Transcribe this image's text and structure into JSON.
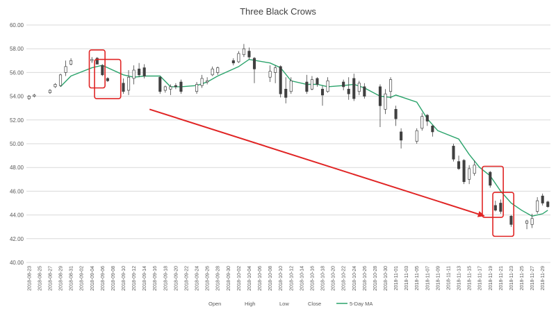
{
  "chart_data": {
    "type": "candlestick",
    "title": "Three Black Crows",
    "xlabel": "",
    "ylabel": "",
    "ylim": [
      40,
      60
    ],
    "y_ticks": [
      "40.00",
      "42.00",
      "44.00",
      "46.00",
      "48.00",
      "50.00",
      "52.00",
      "54.00",
      "56.00",
      "58.00",
      "60.00"
    ],
    "x_tick_labels": [
      "2018-08-23",
      "2018-08-25",
      "2018-08-27",
      "2018-08-29",
      "2018-08-31",
      "2018-09-02",
      "2018-09-04",
      "2018-09-06",
      "2018-09-08",
      "2018-09-10",
      "2018-09-12",
      "2018-09-14",
      "2018-09-16",
      "2018-09-18",
      "2018-09-20",
      "2018-09-22",
      "2018-09-24",
      "2018-09-26",
      "2018-09-28",
      "2018-09-30",
      "2018-10-02",
      "2018-10-04",
      "2018-10-06",
      "2018-10-08",
      "2018-10-10",
      "2018-10-12",
      "2018-10-14",
      "2018-10-16",
      "2018-10-18",
      "2018-10-20",
      "2018-10-22",
      "2018-10-24",
      "2018-10-26",
      "2018-10-28",
      "2018-10-30",
      "2018-11-01",
      "2018-11-03",
      "2018-11-05",
      "2018-11-07",
      "2018-11-09",
      "2018-11-11",
      "2018-11-13",
      "2018-11-15",
      "2018-11-17",
      "2018-11-19",
      "2018-11-21",
      "2018-11-23",
      "2018-11-25",
      "2018-11-27",
      "2018-11-29"
    ],
    "x_range": [
      "2018-08-23",
      "2018-11-30"
    ],
    "grid": "horizontal",
    "legend": {
      "position": "bottom",
      "entries": [
        "Open",
        "High",
        "Low",
        "Close",
        "5-Day MA"
      ]
    },
    "colors": {
      "bull_fill": "#ffffff",
      "bear_fill": "#404040",
      "candle_stroke": "#404040",
      "ma_line": "#2aa36b",
      "annotation": "#e02424"
    },
    "candles": [
      {
        "date": "2018-08-23",
        "open": 53.8,
        "high": 54.1,
        "low": 53.7,
        "close": 54.0
      },
      {
        "date": "2018-08-24",
        "open": 54.0,
        "high": 54.2,
        "low": 53.9,
        "close": 54.1
      },
      {
        "date": "2018-08-27",
        "open": 54.3,
        "high": 54.6,
        "low": 54.2,
        "close": 54.5
      },
      {
        "date": "2018-08-28",
        "open": 54.8,
        "high": 55.1,
        "low": 54.7,
        "close": 55.0
      },
      {
        "date": "2018-08-29",
        "open": 54.9,
        "high": 55.9,
        "low": 54.8,
        "close": 55.8
      },
      {
        "date": "2018-08-30",
        "open": 56.0,
        "high": 57.0,
        "low": 55.7,
        "close": 56.5
      },
      {
        "date": "2018-08-31",
        "open": 56.7,
        "high": 57.2,
        "low": 56.6,
        "close": 57.0
      },
      {
        "date": "2018-09-04",
        "open": 57.0,
        "high": 57.3,
        "low": 56.8,
        "close": 57.1
      },
      {
        "date": "2018-09-05",
        "open": 57.2,
        "high": 57.3,
        "low": 56.7,
        "close": 56.7
      },
      {
        "date": "2018-09-06",
        "open": 56.6,
        "high": 56.7,
        "low": 55.7,
        "close": 55.8
      },
      {
        "date": "2018-09-07",
        "open": 55.5,
        "high": 55.6,
        "low": 55.2,
        "close": 55.3
      },
      {
        "date": "2018-09-10",
        "open": 55.1,
        "high": 55.5,
        "low": 54.2,
        "close": 54.4
      },
      {
        "date": "2018-09-11",
        "open": 54.5,
        "high": 56.2,
        "low": 54.1,
        "close": 55.6
      },
      {
        "date": "2018-09-12",
        "open": 55.5,
        "high": 56.6,
        "low": 55.0,
        "close": 56.2
      },
      {
        "date": "2018-09-13",
        "open": 56.3,
        "high": 56.8,
        "low": 55.6,
        "close": 55.8
      },
      {
        "date": "2018-09-14",
        "open": 56.4,
        "high": 56.7,
        "low": 55.5,
        "close": 55.7
      },
      {
        "date": "2018-09-17",
        "open": 55.6,
        "high": 55.7,
        "low": 54.2,
        "close": 54.4
      },
      {
        "date": "2018-09-18",
        "open": 54.5,
        "high": 54.9,
        "low": 54.3,
        "close": 54.8
      },
      {
        "date": "2018-09-19",
        "open": 54.6,
        "high": 55.0,
        "low": 54.1,
        "close": 54.8
      },
      {
        "date": "2018-09-20",
        "open": 54.9,
        "high": 55.1,
        "low": 54.6,
        "close": 54.8
      },
      {
        "date": "2018-09-21",
        "open": 55.2,
        "high": 55.4,
        "low": 54.2,
        "close": 54.4
      },
      {
        "date": "2018-09-24",
        "open": 54.4,
        "high": 55.2,
        "low": 54.2,
        "close": 55.0
      },
      {
        "date": "2018-09-25",
        "open": 54.9,
        "high": 55.8,
        "low": 54.7,
        "close": 55.5
      },
      {
        "date": "2018-09-26",
        "open": 55.2,
        "high": 55.6,
        "low": 55.0,
        "close": 55.3
      },
      {
        "date": "2018-09-27",
        "open": 55.8,
        "high": 56.5,
        "low": 55.7,
        "close": 56.3
      },
      {
        "date": "2018-09-28",
        "open": 56.0,
        "high": 56.5,
        "low": 55.8,
        "close": 56.4
      },
      {
        "date": "2018-10-01",
        "open": 57.0,
        "high": 57.2,
        "low": 56.6,
        "close": 56.8
      },
      {
        "date": "2018-10-02",
        "open": 56.9,
        "high": 57.8,
        "low": 56.8,
        "close": 57.6
      },
      {
        "date": "2018-10-03",
        "open": 57.5,
        "high": 58.4,
        "low": 57.3,
        "close": 58.0
      },
      {
        "date": "2018-10-04",
        "open": 57.8,
        "high": 58.1,
        "low": 57.1,
        "close": 57.3
      },
      {
        "date": "2018-10-05",
        "open": 57.2,
        "high": 57.3,
        "low": 55.1,
        "close": 56.3
      },
      {
        "date": "2018-10-08",
        "open": 55.6,
        "high": 56.6,
        "low": 55.2,
        "close": 56.1
      },
      {
        "date": "2018-10-09",
        "open": 56.0,
        "high": 56.6,
        "low": 55.1,
        "close": 56.4
      },
      {
        "date": "2018-10-10",
        "open": 56.5,
        "high": 56.6,
        "low": 53.9,
        "close": 54.2
      },
      {
        "date": "2018-10-11",
        "open": 54.6,
        "high": 55.6,
        "low": 53.4,
        "close": 53.9
      },
      {
        "date": "2018-10-12",
        "open": 54.4,
        "high": 55.6,
        "low": 54.2,
        "close": 55.3
      },
      {
        "date": "2018-10-15",
        "open": 55.2,
        "high": 55.8,
        "low": 54.2,
        "close": 54.4
      },
      {
        "date": "2018-10-16",
        "open": 54.6,
        "high": 55.7,
        "low": 54.5,
        "close": 55.4
      },
      {
        "date": "2018-10-17",
        "open": 55.5,
        "high": 55.6,
        "low": 54.8,
        "close": 55.0
      },
      {
        "date": "2018-10-18",
        "open": 54.6,
        "high": 54.9,
        "low": 53.2,
        "close": 54.1
      },
      {
        "date": "2018-10-19",
        "open": 54.4,
        "high": 55.6,
        "low": 54.3,
        "close": 55.3
      },
      {
        "date": "2018-10-22",
        "open": 55.2,
        "high": 55.4,
        "low": 54.5,
        "close": 54.8
      },
      {
        "date": "2018-10-23",
        "open": 54.6,
        "high": 55.6,
        "low": 53.7,
        "close": 54.2
      },
      {
        "date": "2018-10-24",
        "open": 55.5,
        "high": 55.9,
        "low": 53.6,
        "close": 53.8
      },
      {
        "date": "2018-10-25",
        "open": 54.4,
        "high": 55.3,
        "low": 54.1,
        "close": 55.1
      },
      {
        "date": "2018-10-26",
        "open": 54.8,
        "high": 55.1,
        "low": 53.8,
        "close": 54.0
      },
      {
        "date": "2018-10-29",
        "open": 54.8,
        "high": 55.0,
        "low": 51.4,
        "close": 53.2
      },
      {
        "date": "2018-10-30",
        "open": 52.9,
        "high": 54.6,
        "low": 52.5,
        "close": 54.2
      },
      {
        "date": "2018-10-31",
        "open": 54.4,
        "high": 55.6,
        "low": 53.8,
        "close": 55.4
      },
      {
        "date": "2018-11-01",
        "open": 52.9,
        "high": 53.2,
        "low": 51.5,
        "close": 52.1
      },
      {
        "date": "2018-11-02",
        "open": 51.0,
        "high": 51.3,
        "low": 49.6,
        "close": 50.3
      },
      {
        "date": "2018-11-05",
        "open": 50.2,
        "high": 51.3,
        "low": 50.0,
        "close": 51.1
      },
      {
        "date": "2018-11-06",
        "open": 51.3,
        "high": 52.6,
        "low": 51.1,
        "close": 52.3
      },
      {
        "date": "2018-11-07",
        "open": 52.4,
        "high": 52.5,
        "low": 51.5,
        "close": 51.9
      },
      {
        "date": "2018-11-08",
        "open": 51.5,
        "high": 51.6,
        "low": 50.6,
        "close": 51.0
      },
      {
        "date": "2018-11-12",
        "open": 49.8,
        "high": 50.0,
        "low": 48.5,
        "close": 48.7
      },
      {
        "date": "2018-11-13",
        "open": 48.5,
        "high": 49.0,
        "low": 47.8,
        "close": 47.9
      },
      {
        "date": "2018-11-14",
        "open": 48.6,
        "high": 48.7,
        "low": 46.6,
        "close": 46.8
      },
      {
        "date": "2018-11-15",
        "open": 47.0,
        "high": 48.2,
        "low": 46.6,
        "close": 47.9
      },
      {
        "date": "2018-11-16",
        "open": 47.5,
        "high": 48.6,
        "low": 47.3,
        "close": 48.2
      },
      {
        "date": "2018-11-19",
        "open": 47.6,
        "high": 47.7,
        "low": 46.3,
        "close": 46.5
      },
      {
        "date": "2018-11-20",
        "open": 44.8,
        "high": 45.2,
        "low": 44.3,
        "close": 44.4
      },
      {
        "date": "2018-11-21",
        "open": 45.0,
        "high": 45.3,
        "low": 44.1,
        "close": 44.3
      },
      {
        "date": "2018-11-23",
        "open": 43.9,
        "high": 44.0,
        "low": 43.0,
        "close": 43.2
      },
      {
        "date": "2018-11-26",
        "open": 43.3,
        "high": 43.6,
        "low": 42.8,
        "close": 43.5
      },
      {
        "date": "2018-11-27",
        "open": 43.2,
        "high": 44.1,
        "low": 42.9,
        "close": 43.7
      },
      {
        "date": "2018-11-28",
        "open": 44.3,
        "high": 45.5,
        "low": 44.1,
        "close": 45.2
      },
      {
        "date": "2018-11-29",
        "open": 45.6,
        "high": 45.8,
        "low": 44.8,
        "close": 45.0
      },
      {
        "date": "2018-11-30",
        "open": 45.1,
        "high": 45.2,
        "low": 44.6,
        "close": 44.7
      }
    ],
    "ma_series": {
      "name": "5-Day MA",
      "points": [
        {
          "date": "2018-08-29",
          "value": 54.8
        },
        {
          "date": "2018-08-31",
          "value": 55.7
        },
        {
          "date": "2018-09-04",
          "value": 56.4
        },
        {
          "date": "2018-09-06",
          "value": 56.6
        },
        {
          "date": "2018-09-10",
          "value": 55.8
        },
        {
          "date": "2018-09-12",
          "value": 55.6
        },
        {
          "date": "2018-09-14",
          "value": 55.7
        },
        {
          "date": "2018-09-17",
          "value": 55.7
        },
        {
          "date": "2018-09-19",
          "value": 54.8
        },
        {
          "date": "2018-09-21",
          "value": 54.8
        },
        {
          "date": "2018-09-24",
          "value": 54.9
        },
        {
          "date": "2018-09-26",
          "value": 55.2
        },
        {
          "date": "2018-09-28",
          "value": 55.7
        },
        {
          "date": "2018-10-02",
          "value": 56.5
        },
        {
          "date": "2018-10-04",
          "value": 57.1
        },
        {
          "date": "2018-10-08",
          "value": 56.8
        },
        {
          "date": "2018-10-10",
          "value": 56.4
        },
        {
          "date": "2018-10-12",
          "value": 55.3
        },
        {
          "date": "2018-10-15",
          "value": 55.0
        },
        {
          "date": "2018-10-17",
          "value": 55.0
        },
        {
          "date": "2018-10-19",
          "value": 54.8
        },
        {
          "date": "2018-10-22",
          "value": 54.9
        },
        {
          "date": "2018-10-24",
          "value": 55.0
        },
        {
          "date": "2018-10-26",
          "value": 54.7
        },
        {
          "date": "2018-10-29",
          "value": 54.0
        },
        {
          "date": "2018-10-31",
          "value": 53.9
        },
        {
          "date": "2018-11-01",
          "value": 54.1
        },
        {
          "date": "2018-11-05",
          "value": 53.5
        },
        {
          "date": "2018-11-07",
          "value": 52.1
        },
        {
          "date": "2018-11-09",
          "value": 51.1
        },
        {
          "date": "2018-11-13",
          "value": 50.4
        },
        {
          "date": "2018-11-15",
          "value": 49.1
        },
        {
          "date": "2018-11-17",
          "value": 48.0
        },
        {
          "date": "2018-11-19",
          "value": 47.3
        },
        {
          "date": "2018-11-21",
          "value": 46.0
        },
        {
          "date": "2018-11-23",
          "value": 45.0
        },
        {
          "date": "2018-11-25",
          "value": 44.4
        },
        {
          "date": "2018-11-27",
          "value": 43.9
        },
        {
          "date": "2018-11-29",
          "value": 44.1
        },
        {
          "date": "2018-11-30",
          "value": 44.4
        }
      ]
    },
    "annotations": {
      "boxes": [
        {
          "from": "2018-09-04",
          "to": "2018-09-06",
          "low": 54.7,
          "high": 57.9
        },
        {
          "from": "2018-09-05",
          "to": "2018-09-09",
          "low": 53.8,
          "high": 57.1
        },
        {
          "from": "2018-11-18",
          "to": "2018-11-21",
          "low": 43.8,
          "high": 48.1
        },
        {
          "from": "2018-11-20",
          "to": "2018-11-23",
          "low": 42.2,
          "high": 45.9
        }
      ],
      "arrow": {
        "from_date": "2018-09-15",
        "from_value": 52.9,
        "to_date": "2018-11-18",
        "to_value": 43.9
      }
    }
  }
}
